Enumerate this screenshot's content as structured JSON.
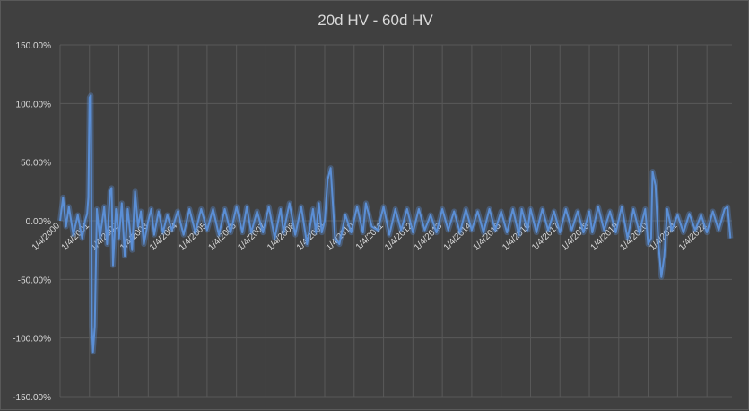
{
  "chart_data": {
    "type": "line",
    "title": "20d HV - 60d HV",
    "xlabel": "",
    "ylabel": "",
    "ylim": [
      -1.5,
      1.5
    ],
    "yticks": [
      "150.00%",
      "100.00%",
      "50.00%",
      "0.00%",
      "-50.00%",
      "-100.00%",
      "-150.00%"
    ],
    "ytick_values": [
      1.5,
      1.0,
      0.5,
      0.0,
      -0.5,
      -1.0,
      -1.5
    ],
    "xticks": [
      "1/4/2000",
      "1/4/2001",
      "1/4/2002",
      "1/4/2003",
      "1/4/2004",
      "1/4/2005",
      "1/4/2006",
      "1/4/2007",
      "1/4/2008",
      "1/4/2009",
      "1/4/2010",
      "1/4/2011",
      "1/4/2012",
      "1/4/2013",
      "1/4/2014",
      "1/4/2015",
      "1/4/2016",
      "1/4/2017",
      "1/4/2018",
      "1/4/2019",
      "1/4/2020",
      "1/4/2021",
      "1/4/2022"
    ],
    "grid": true,
    "legend": "none",
    "line_color": "#5b8fd6",
    "series": [
      {
        "x": [
          2000.0,
          2000.1,
          2000.2,
          2000.3,
          2000.45,
          2000.6,
          2000.75,
          2000.85,
          2000.92,
          2000.96,
          2001.0,
          2001.05,
          2001.08,
          2001.12,
          2001.18,
          2001.25,
          2001.35,
          2001.5,
          2001.6,
          2001.7,
          2001.75,
          2001.8,
          2001.9,
          2002.0,
          2002.1,
          2002.2,
          2002.3,
          2002.45,
          2002.55,
          2002.65,
          2002.75,
          2002.85,
          2003.0,
          2003.1,
          2003.2,
          2003.35,
          2003.5,
          2003.65,
          2003.8,
          2004.0,
          2004.2,
          2004.4,
          2004.6,
          2004.8,
          2005.0,
          2005.2,
          2005.4,
          2005.6,
          2005.8,
          2006.0,
          2006.2,
          2006.35,
          2006.5,
          2006.7,
          2006.9,
          2007.1,
          2007.3,
          2007.5,
          2007.6,
          2007.8,
          2008.0,
          2008.2,
          2008.4,
          2008.6,
          2008.7,
          2008.8,
          2008.9,
          2009.0,
          2009.1,
          2009.2,
          2009.35,
          2009.5,
          2009.7,
          2009.9,
          2010.1,
          2010.3,
          2010.4,
          2010.6,
          2010.8,
          2011.0,
          2011.2,
          2011.4,
          2011.6,
          2011.8,
          2012.0,
          2012.2,
          2012.4,
          2012.6,
          2012.8,
          2013.0,
          2013.2,
          2013.4,
          2013.6,
          2013.8,
          2014.0,
          2014.2,
          2014.4,
          2014.6,
          2014.8,
          2015.0,
          2015.2,
          2015.4,
          2015.6,
          2015.7,
          2015.9,
          2016.0,
          2016.2,
          2016.4,
          2016.6,
          2016.8,
          2017.0,
          2017.2,
          2017.4,
          2017.6,
          2017.8,
          2018.0,
          2018.1,
          2018.3,
          2018.5,
          2018.7,
          2018.9,
          2019.1,
          2019.3,
          2019.5,
          2019.7,
          2019.9,
          2020.0,
          2020.1,
          2020.15,
          2020.25,
          2020.35,
          2020.45,
          2020.55,
          2020.65,
          2020.8,
          2021.0,
          2021.2,
          2021.4,
          2021.6,
          2021.8,
          2022.0,
          2022.2,
          2022.4,
          2022.6,
          2022.7,
          2022.8
        ],
        "y": [
          0.0,
          0.2,
          -0.05,
          0.12,
          -0.12,
          0.05,
          -0.15,
          0.0,
          0.06,
          0.2,
          1.05,
          1.07,
          -0.9,
          -1.12,
          -0.9,
          0.1,
          -0.15,
          0.12,
          -0.2,
          0.25,
          0.28,
          -0.38,
          0.1,
          -0.15,
          0.15,
          -0.3,
          0.1,
          -0.25,
          0.25,
          -0.05,
          0.08,
          -0.2,
          0.0,
          0.1,
          -0.12,
          0.08,
          -0.1,
          0.05,
          -0.08,
          0.08,
          -0.12,
          0.1,
          -0.1,
          0.1,
          -0.08,
          0.1,
          -0.12,
          0.1,
          -0.1,
          0.12,
          -0.1,
          0.12,
          -0.1,
          0.08,
          -0.1,
          0.12,
          -0.15,
          0.1,
          -0.1,
          0.15,
          -0.12,
          0.12,
          -0.2,
          0.1,
          -0.1,
          0.15,
          -0.1,
          0.0,
          0.35,
          0.45,
          -0.15,
          -0.2,
          0.05,
          -0.1,
          0.12,
          -0.1,
          0.15,
          -0.05,
          -0.08,
          0.12,
          -0.12,
          0.1,
          -0.08,
          0.1,
          -0.1,
          0.1,
          -0.08,
          0.05,
          -0.1,
          0.1,
          -0.08,
          0.08,
          -0.1,
          0.1,
          -0.08,
          0.08,
          -0.1,
          0.1,
          -0.08,
          0.08,
          -0.1,
          0.1,
          -0.12,
          0.1,
          -0.08,
          0.1,
          -0.1,
          0.1,
          -0.08,
          0.08,
          -0.1,
          0.1,
          -0.08,
          0.08,
          -0.1,
          0.08,
          -0.1,
          0.12,
          -0.08,
          0.08,
          -0.1,
          0.12,
          -0.15,
          0.1,
          -0.1,
          0.1,
          -0.2,
          -0.15,
          0.42,
          0.3,
          -0.2,
          -0.48,
          -0.3,
          0.1,
          -0.08,
          0.05,
          -0.1,
          0.06,
          -0.08,
          0.05,
          -0.1,
          0.08,
          -0.08,
          0.1,
          0.12,
          -0.15
        ]
      }
    ]
  }
}
